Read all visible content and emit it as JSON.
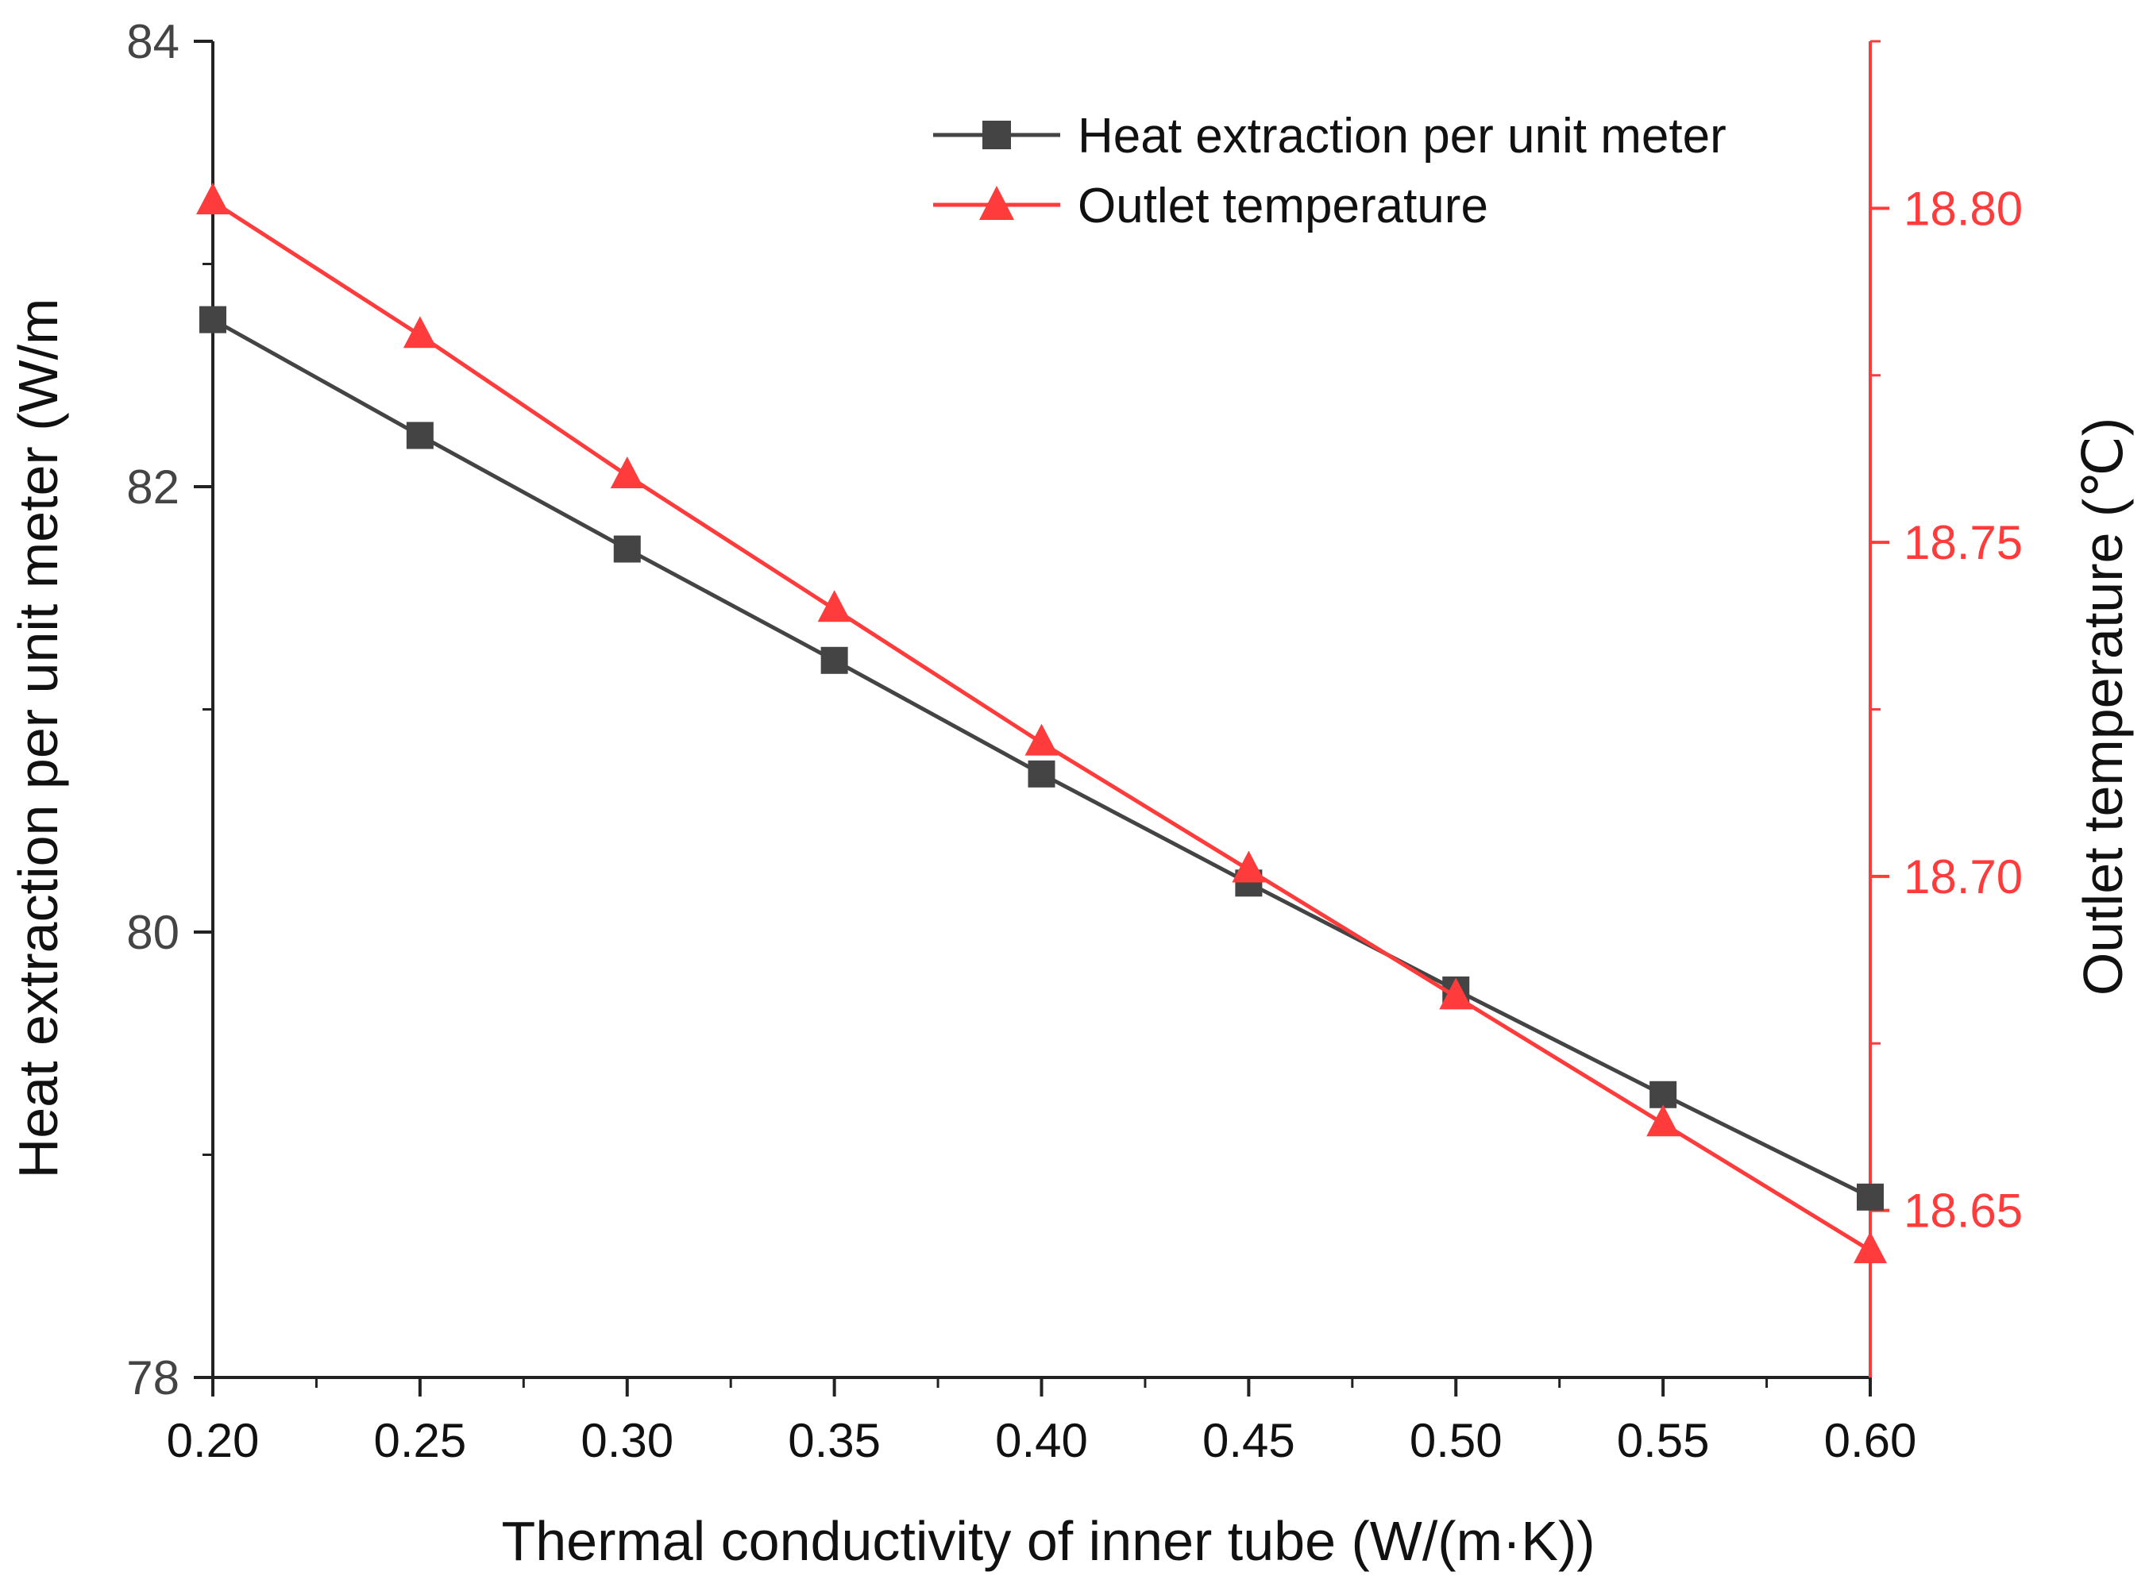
{
  "chart_data": {
    "type": "line",
    "xlabel": "Thermal conductivity of inner tube (W/(m·K))",
    "ylabel_left": "Heat extraction per unit meter (W/m",
    "ylabel_right": "Outlet temperature  (℃)",
    "x": [
      0.2,
      0.25,
      0.3,
      0.35,
      0.4,
      0.45,
      0.5,
      0.55,
      0.6
    ],
    "xlim": [
      0.2,
      0.6
    ],
    "x_ticks": [
      "0.20",
      "0.25",
      "0.30",
      "0.35",
      "0.40",
      "0.45",
      "0.50",
      "0.55",
      "0.60"
    ],
    "ylim_left": [
      78,
      84
    ],
    "y_ticks_left": [
      "78",
      "80",
      "82",
      "84"
    ],
    "ylim_right": [
      18.625,
      18.825
    ],
    "y_ticks_right": [
      "18.65",
      "18.70",
      "18.75",
      "18.80"
    ],
    "series": [
      {
        "name": "Heat extraction per unit meter",
        "axis": "left",
        "marker": "square",
        "color": "#444444",
        "values": [
          82.75,
          82.23,
          81.72,
          81.22,
          80.71,
          80.22,
          79.74,
          79.27,
          78.81
        ]
      },
      {
        "name": "Outlet temperature",
        "axis": "right",
        "marker": "triangle",
        "color": "#ff3b3b",
        "values": [
          18.801,
          18.781,
          18.76,
          18.74,
          18.72,
          18.701,
          18.682,
          18.663,
          18.644
        ]
      }
    ],
    "legend_position": "top-right",
    "grid": false
  }
}
